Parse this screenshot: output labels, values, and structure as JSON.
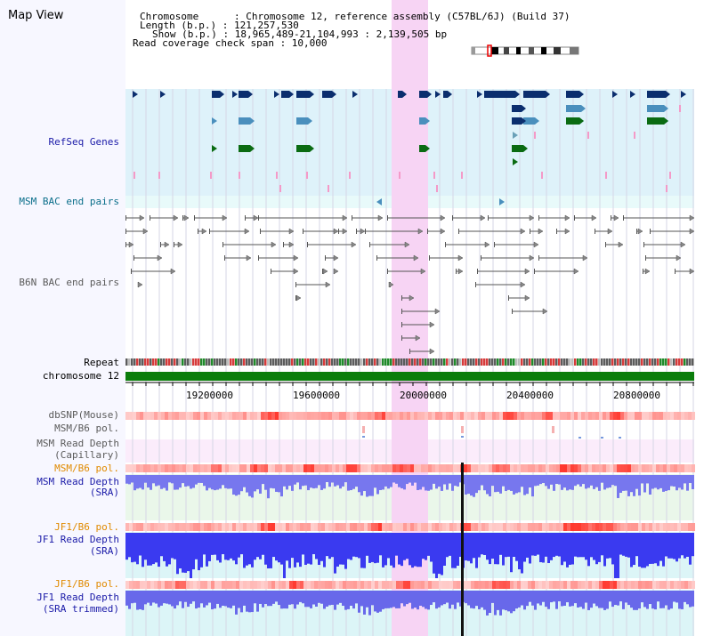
{
  "header": {
    "title": "Map View",
    "info_lines": [
      "Chromosome      : Chromosome 12, reference assembly (C57BL/6J) (Build 37)",
      "Length (b.p.) : 121,257,530",
      "Show (b.p.) : 18,965,489-21,104,993 : 2,139,505 bp",
      "Read coverage check span : 10,000"
    ]
  },
  "tracks": {
    "refseq": "RefSeq Genes",
    "msm_bac": "MSM BAC end pairs",
    "b6n_bac": "B6N BAC end pairs",
    "repeat": "Repeat",
    "chromosome": "chromosome 12",
    "dbsnp": "dbSNP(Mouse)",
    "msm_b6_pol_1": "MSM/B6 pol.",
    "msm_read_depth_cap_1": "MSM Read Depth",
    "msm_read_depth_cap_2": "(Capillary)",
    "msm_b6_pol_2": "MSM/B6 pol.",
    "msm_read_depth_sra_1": "MSM Read Depth",
    "msm_read_depth_sra_2": "(SRA)",
    "jf1_b6_pol_1": "JF1/B6 pol.",
    "jf1_read_depth_sra_1": "JF1 Read Depth",
    "jf1_read_depth_sra_2": "(SRA)",
    "jf1_b6_pol_2": "JF1/B6 pol.",
    "jf1_read_depth_trim_1": "JF1 Read Depth",
    "jf1_read_depth_trim_2": "(SRA trimmed)"
  },
  "axis": {
    "ticks": [
      "19200000",
      "19600000",
      "20000000",
      "20400000",
      "20800000"
    ]
  },
  "colors": {
    "refseq_bg": "#def2fa",
    "msm_bac_bg": "#e8fafa",
    "highlight": "#f7d4f4",
    "gene_dark": "#0b2e6e",
    "gene_mid": "#4a8fbd",
    "gene_green": "#0a6b12",
    "gene_light": "#6aa0b8",
    "chromosome_bar": "#0b7d0b",
    "depth_blue": "#2a2ae6"
  }
}
